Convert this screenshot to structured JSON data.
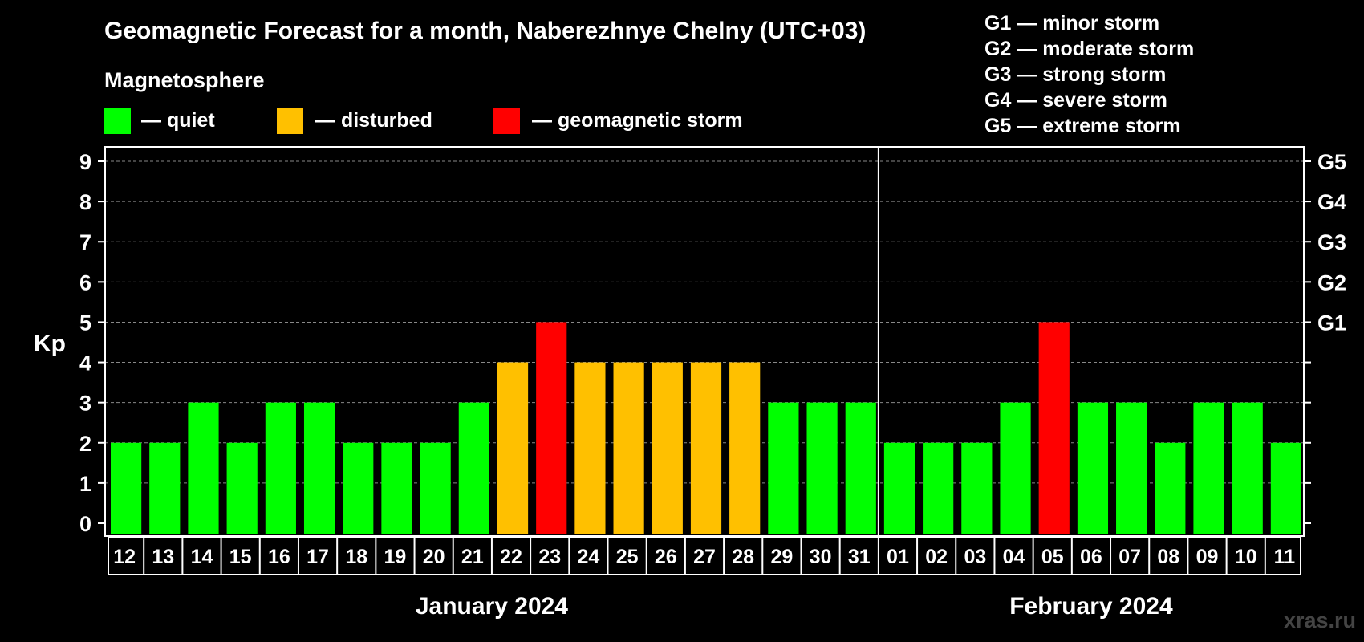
{
  "title": "Geomagnetic Forecast for a month, Naberezhnye Chelny (UTC+03)",
  "subtitle": "Magnetosphere",
  "legend": [
    {
      "label": "— quiet",
      "color": "#00ff00"
    },
    {
      "label": "— disturbed",
      "color": "#ffc000"
    },
    {
      "label": "— geomagnetic storm",
      "color": "#ff0000"
    }
  ],
  "storm_levels": [
    "G1 — minor storm",
    "G2 — moderate storm",
    "G3 — strong storm",
    "G4 — severe storm",
    "G5 — extreme storm"
  ],
  "watermark": "xras.ru",
  "chart_data": {
    "type": "bar",
    "ylabel": "Kp",
    "ylim": [
      0,
      9
    ],
    "grid": true,
    "y_ticks": [
      "0",
      "1",
      "2",
      "3",
      "4",
      "5",
      "6",
      "7",
      "8",
      "9"
    ],
    "right_ticks": [
      {
        "value": 5,
        "label": "G1"
      },
      {
        "value": 6,
        "label": "G2"
      },
      {
        "value": 7,
        "label": "G3"
      },
      {
        "value": 8,
        "label": "G4"
      },
      {
        "value": 9,
        "label": "G5"
      }
    ],
    "categories": [
      "12",
      "13",
      "14",
      "15",
      "16",
      "17",
      "18",
      "19",
      "20",
      "21",
      "22",
      "23",
      "24",
      "25",
      "26",
      "27",
      "28",
      "29",
      "30",
      "31",
      "01",
      "02",
      "03",
      "04",
      "05",
      "06",
      "07",
      "08",
      "09",
      "10",
      "11"
    ],
    "values": [
      2,
      2,
      3,
      2,
      3,
      3,
      2,
      2,
      2,
      3,
      4,
      5,
      4,
      4,
      4,
      4,
      4,
      3,
      3,
      3,
      2,
      2,
      2,
      3,
      5,
      3,
      3,
      2,
      3,
      3,
      2
    ],
    "months": [
      {
        "label": "January 2024",
        "count": 20
      },
      {
        "label": "February 2024",
        "count": 11
      }
    ],
    "colors": {
      "quiet": "#00ff00",
      "disturbed": "#ffc000",
      "storm": "#ff0000"
    }
  }
}
